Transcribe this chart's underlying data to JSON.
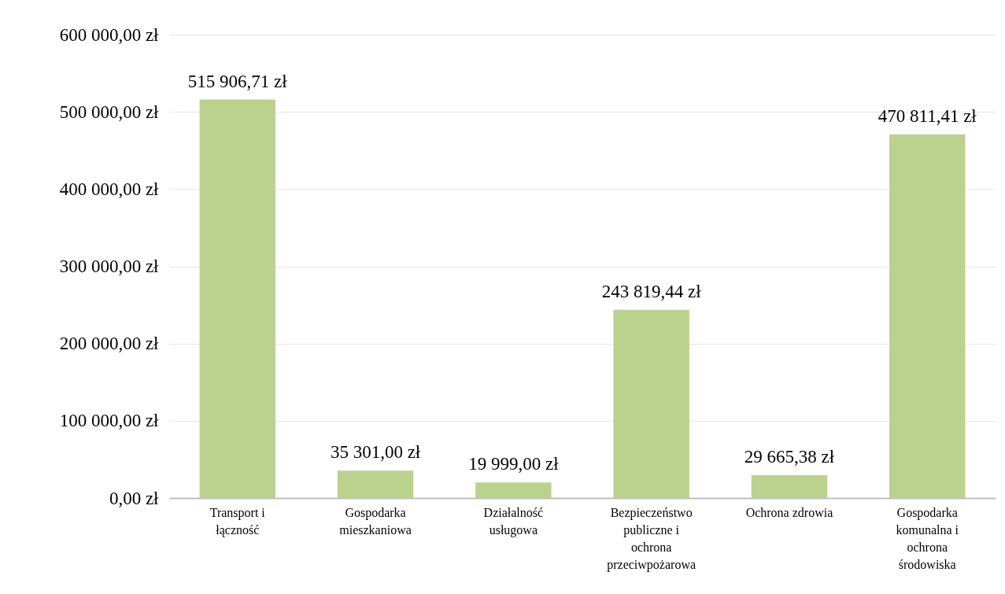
{
  "chart_data": {
    "type": "bar",
    "categories": [
      "Transport i łączność",
      "Gospodarka mieszkaniowa",
      "Działalność usługowa",
      "Bezpieczeństwo publiczne i ochrona przeciwpożarowa",
      "Ochrona zdrowia",
      "Gospodarka komunalna i ochrona środowiska"
    ],
    "values": [
      515906.71,
      35301.0,
      19999.0,
      243819.44,
      29665.38,
      470811.41
    ],
    "value_labels": [
      "515 906,71 zł",
      "35 301,00 zł",
      "19 999,00 zł",
      "243 819,44 zł",
      "29 665,38 zł",
      "470 811,41 zł"
    ],
    "color": "#bbd18e",
    "ylim": [
      0,
      600000
    ],
    "yticks": [
      {
        "value": 0,
        "label": "0,00 zł"
      },
      {
        "value": 100000,
        "label": "100 000,00 zł"
      },
      {
        "value": 200000,
        "label": "200 000,00 zł"
      },
      {
        "value": 300000,
        "label": "300 000,00 zł"
      },
      {
        "value": 400000,
        "label": "400 000,00 zł"
      },
      {
        "value": 500000,
        "label": "500 000,00 zł"
      },
      {
        "value": 600000,
        "label": "600 000,00 zł"
      }
    ],
    "grid": "y"
  }
}
